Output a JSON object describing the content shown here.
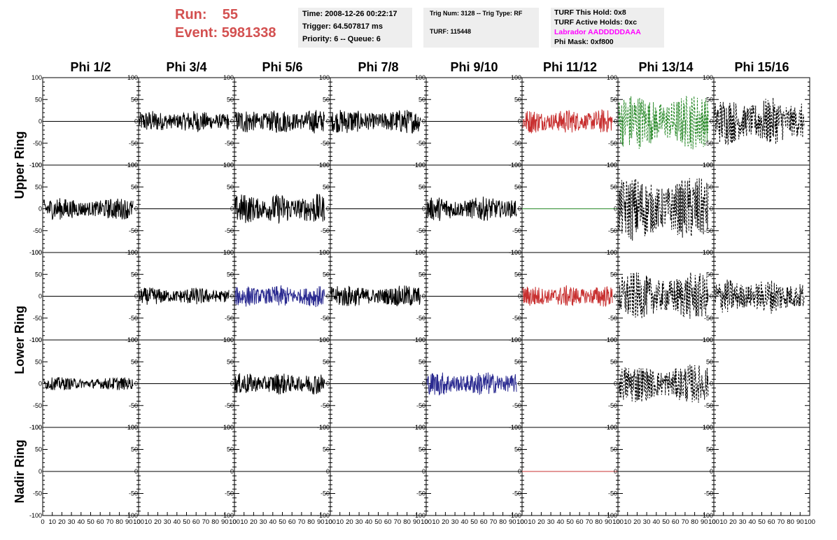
{
  "header": {
    "run_label": "Run:",
    "run_value": "55",
    "event_label": "Event:",
    "event_value": "5981338"
  },
  "info_time": {
    "time": "Time: 2008-12-26 00:22:17",
    "trigger": "Trigger: 64.507817 ms",
    "priority": "Priority: 6 -- Queue: 6"
  },
  "info_trig": {
    "trig_line": "Trig Num: 3128 -- Trig Type: RF",
    "turf": "TURF: 115448"
  },
  "info_turf": {
    "this_hold": "TURF This Hold: 0x8",
    "active_holds": "TURF Active Holds: 0xc",
    "labrador": "Labrador AADDDDDAAA",
    "phi_mask": "Phi Mask: 0xf800"
  },
  "colors": {
    "header_red": "#d35050",
    "labrador_magenta": "#ff00ff",
    "trace_black": "#000000",
    "trace_red": "#c83030",
    "trace_green": "#2a8a2a",
    "trace_blue": "#2a2a90",
    "info_box_bg": "#eeeeee"
  },
  "columns": [
    "Phi 1/2",
    "Phi 3/4",
    "Phi 5/6",
    "Phi 7/8",
    "Phi 9/10",
    "Phi 11/12",
    "Phi 13/14",
    "Phi 15/16"
  ],
  "rows": [
    "Upper Ring",
    "Upper Ring",
    "Lower Ring",
    "Lower Ring",
    "Nadir Ring"
  ],
  "ring_labels": [
    {
      "text": "Upper Ring"
    },
    {
      "text": "Lower Ring"
    },
    {
      "text": "Nadir Ring"
    }
  ],
  "chart_data": {
    "type": "line",
    "layout": "grid of waveform panels, 5 rows x 8 columns",
    "y_tick_labels": [
      "100",
      "50",
      "0",
      "-50",
      "-100"
    ],
    "ylim": [
      -100,
      100
    ],
    "x_tick_labels": [
      "0",
      "10",
      "20",
      "30",
      "40",
      "50",
      "60",
      "70",
      "80",
      "90",
      "100"
    ],
    "xlim": [
      0,
      100
    ],
    "panels": [
      [
        {
          "trace": "flat",
          "color": "black",
          "style": "solid",
          "amp": 0
        },
        {
          "trace": "noise",
          "color": "black",
          "style": "solid",
          "amp": 25
        },
        {
          "trace": "noise",
          "color": "black",
          "style": "solid",
          "amp": 28
        },
        {
          "trace": "noise",
          "color": "black",
          "style": "solid",
          "amp": 28
        },
        {
          "trace": "flat",
          "color": "black",
          "style": "solid",
          "amp": 0
        },
        {
          "trace": "noise",
          "color": "red",
          "style": "solid",
          "amp": 28
        },
        {
          "trace": "noise",
          "color": "green",
          "style": "dashed",
          "amp": 65
        },
        {
          "trace": "noise",
          "color": "black",
          "style": "dashed",
          "amp": 55
        }
      ],
      [
        {
          "trace": "noise",
          "color": "black",
          "style": "solid",
          "amp": 25
        },
        {
          "trace": "flat",
          "color": "black",
          "style": "solid",
          "amp": 0
        },
        {
          "trace": "noise",
          "color": "black",
          "style": "solid",
          "amp": 35
        },
        {
          "trace": "flat",
          "color": "black",
          "style": "solid",
          "amp": 0
        },
        {
          "trace": "noise",
          "color": "black",
          "style": "solid",
          "amp": 28
        },
        {
          "trace": "flat",
          "color": "green",
          "style": "solid",
          "amp": 0
        },
        {
          "trace": "noise",
          "color": "black",
          "style": "dashed",
          "amp": 75
        },
        {
          "trace": "flat",
          "color": "black",
          "style": "solid",
          "amp": 0
        }
      ],
      [
        {
          "trace": "flat",
          "color": "black",
          "style": "solid",
          "amp": 0
        },
        {
          "trace": "noise",
          "color": "black",
          "style": "solid",
          "amp": 20
        },
        {
          "trace": "noise",
          "color": "blue",
          "style": "solid",
          "amp": 25
        },
        {
          "trace": "noise",
          "color": "black",
          "style": "solid",
          "amp": 25
        },
        {
          "trace": "flat",
          "color": "black",
          "style": "solid",
          "amp": 0
        },
        {
          "trace": "noise",
          "color": "red",
          "style": "solid",
          "amp": 25
        },
        {
          "trace": "noise",
          "color": "black",
          "style": "dashed",
          "amp": 55
        },
        {
          "trace": "noise",
          "color": "black",
          "style": "dashed",
          "amp": 40
        }
      ],
      [
        {
          "trace": "noise",
          "color": "black",
          "style": "solid",
          "amp": 15
        },
        {
          "trace": "flat",
          "color": "black",
          "style": "solid",
          "amp": 0
        },
        {
          "trace": "noise",
          "color": "black",
          "style": "solid",
          "amp": 25
        },
        {
          "trace": "flat",
          "color": "black",
          "style": "solid",
          "amp": 0
        },
        {
          "trace": "noise",
          "color": "blue",
          "style": "solid",
          "amp": 28
        },
        {
          "trace": "flat",
          "color": "black",
          "style": "solid",
          "amp": 0
        },
        {
          "trace": "noise",
          "color": "black",
          "style": "dashed",
          "amp": 45
        },
        {
          "trace": "flat",
          "color": "black",
          "style": "solid",
          "amp": 0
        }
      ],
      [
        {
          "trace": "flat",
          "color": "black",
          "style": "solid",
          "amp": 0
        },
        {
          "trace": "flat",
          "color": "black",
          "style": "solid",
          "amp": 0
        },
        {
          "trace": "flat",
          "color": "black",
          "style": "solid",
          "amp": 0
        },
        {
          "trace": "flat",
          "color": "black",
          "style": "solid",
          "amp": 0
        },
        {
          "trace": "flat",
          "color": "black",
          "style": "solid",
          "amp": 0
        },
        {
          "trace": "flat",
          "color": "red",
          "style": "solid",
          "amp": 0
        },
        {
          "trace": "flat",
          "color": "black",
          "style": "solid",
          "amp": 0
        },
        {
          "trace": "flat",
          "color": "black",
          "style": "solid",
          "amp": 0
        }
      ]
    ]
  }
}
